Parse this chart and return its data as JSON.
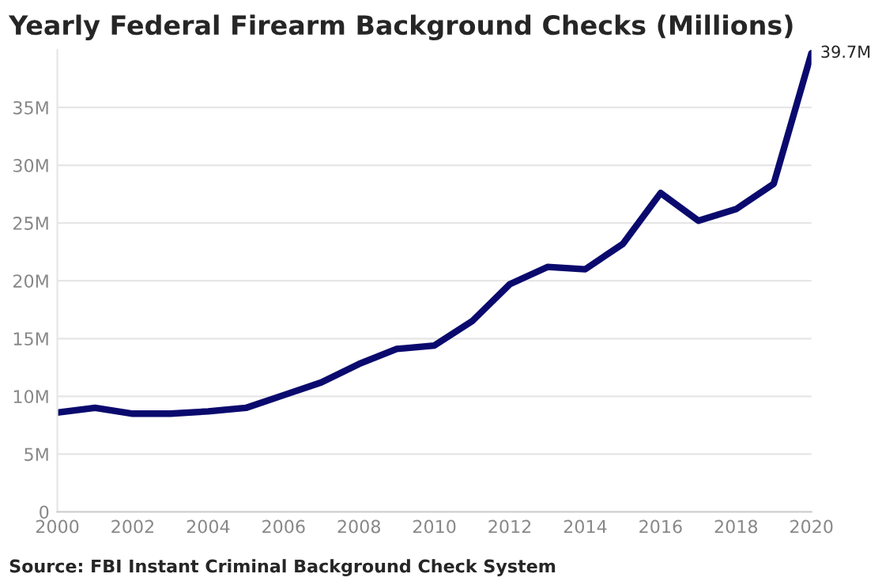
{
  "chart_data": {
    "type": "line",
    "title": "Yearly Federal Firearm Background Checks (Millions)",
    "x": [
      2000,
      2001,
      2002,
      2003,
      2004,
      2005,
      2006,
      2007,
      2008,
      2009,
      2010,
      2011,
      2012,
      2013,
      2014,
      2015,
      2016,
      2017,
      2018,
      2019,
      2020
    ],
    "series": [
      {
        "color": "#0a0a6e",
        "values": [
          8.6,
          9.0,
          8.5,
          8.5,
          8.7,
          9.0,
          10.1,
          11.2,
          12.8,
          14.1,
          14.4,
          16.5,
          19.7,
          21.2,
          21.0,
          23.2,
          27.6,
          25.2,
          26.2,
          28.4,
          39.7
        ],
        "value_labels": [
          null,
          null,
          null,
          null,
          null,
          null,
          null,
          null,
          null,
          null,
          null,
          null,
          null,
          null,
          null,
          null,
          null,
          null,
          null,
          null,
          "39.7M"
        ]
      }
    ],
    "xlim": [
      2000,
      2020
    ],
    "ylim": [
      0,
      40
    ],
    "xticks": [
      2000,
      2002,
      2004,
      2006,
      2008,
      2010,
      2012,
      2014,
      2016,
      2018,
      2020
    ],
    "yticks": [
      {
        "value": 0,
        "label": "0"
      },
      {
        "value": 5,
        "label": "5M"
      },
      {
        "value": 10,
        "label": "10M"
      },
      {
        "value": 15,
        "label": "15M"
      },
      {
        "value": 20,
        "label": "20M"
      },
      {
        "value": 25,
        "label": "25M"
      },
      {
        "value": 30,
        "label": "30M"
      },
      {
        "value": 35,
        "label": "35M"
      }
    ],
    "grid": "y",
    "line_style": "solid",
    "annotations": [
      "Source: FBI Instant Criminal Background Check System"
    ]
  }
}
